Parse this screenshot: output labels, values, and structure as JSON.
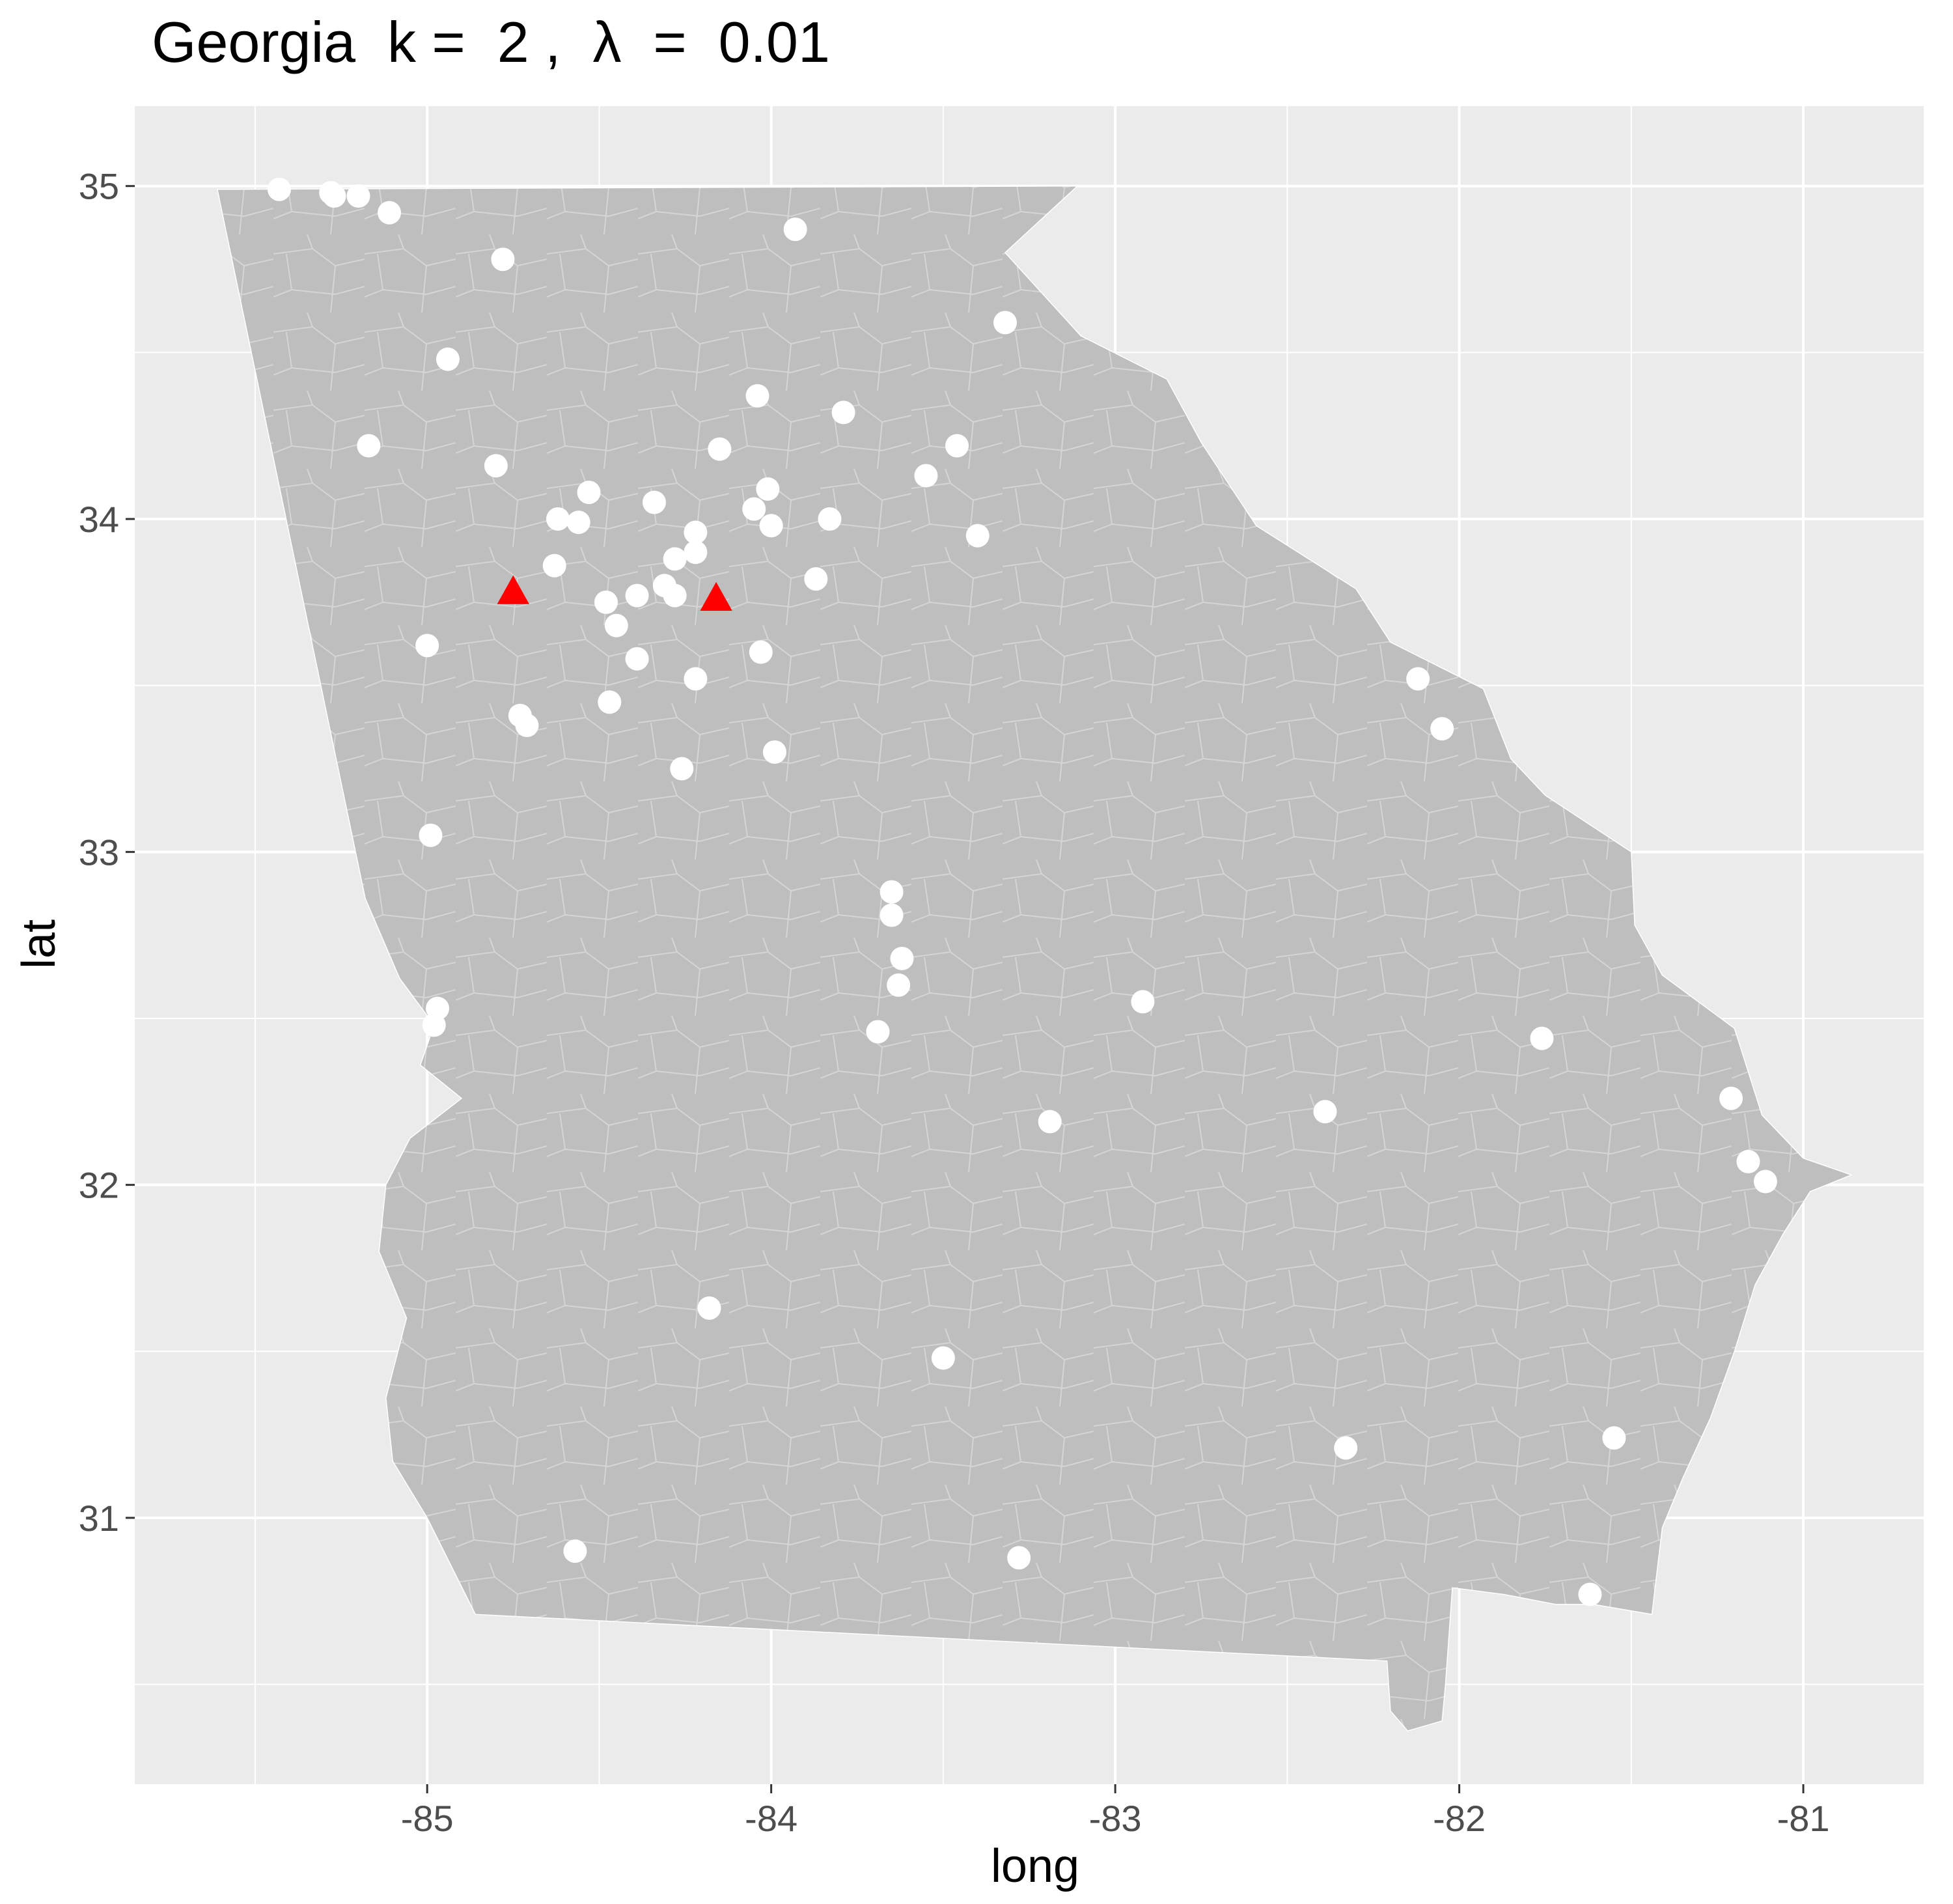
{
  "title": "Georgia  k =  2 ,  λ  =  0.01",
  "xlabel": "long",
  "ylabel": "lat",
  "colors": {
    "panel": "#ebebeb",
    "grid": "#ffffff",
    "state_fill": "#bebebe",
    "tract_lines": "#ffffff",
    "points": "#ffffff",
    "centers": "#ff0000"
  },
  "chart_data": {
    "type": "scatter",
    "xlim": [
      -85.85,
      -80.65
    ],
    "ylim": [
      30.2,
      35.24
    ],
    "x_ticks": [
      {
        "value": -85,
        "label": "-85"
      },
      {
        "value": -84,
        "label": "-84"
      },
      {
        "value": -83,
        "label": "-83"
      },
      {
        "value": -82,
        "label": "-82"
      },
      {
        "value": -81,
        "label": "-81"
      }
    ],
    "y_ticks": [
      {
        "value": 31,
        "label": "31"
      },
      {
        "value": 32,
        "label": "32"
      },
      {
        "value": 33,
        "label": "33"
      },
      {
        "value": 34,
        "label": "34"
      },
      {
        "value": 35,
        "label": "35"
      }
    ],
    "x_minor": [
      -85.5,
      -84.5,
      -83.5,
      -82.5,
      -81.5
    ],
    "y_minor": [
      30.5,
      31.5,
      32.5,
      33.5,
      34.5
    ],
    "grid": true,
    "state_outline": [
      [
        -85.61,
        34.99
      ],
      [
        -83.11,
        35.0
      ],
      [
        -83.32,
        34.8
      ],
      [
        -83.1,
        34.55
      ],
      [
        -82.85,
        34.42
      ],
      [
        -82.75,
        34.23
      ],
      [
        -82.59,
        33.98
      ],
      [
        -82.3,
        33.79
      ],
      [
        -82.2,
        33.63
      ],
      [
        -81.93,
        33.49
      ],
      [
        -81.85,
        33.28
      ],
      [
        -81.75,
        33.17
      ],
      [
        -81.5,
        33.0
      ],
      [
        -81.49,
        32.78
      ],
      [
        -81.41,
        32.63
      ],
      [
        -81.2,
        32.47
      ],
      [
        -81.12,
        32.21
      ],
      [
        -81.0,
        32.08
      ],
      [
        -80.86,
        32.03
      ],
      [
        -80.98,
        31.98
      ],
      [
        -81.06,
        31.85
      ],
      [
        -81.14,
        31.7
      ],
      [
        -81.2,
        31.5
      ],
      [
        -81.27,
        31.3
      ],
      [
        -81.35,
        31.12
      ],
      [
        -81.41,
        30.97
      ],
      [
        -81.44,
        30.71
      ],
      [
        -81.61,
        30.74
      ],
      [
        -81.72,
        30.74
      ],
      [
        -81.87,
        30.77
      ],
      [
        -82.02,
        30.79
      ],
      [
        -82.04,
        30.5
      ],
      [
        -82.05,
        30.39
      ],
      [
        -82.15,
        30.36
      ],
      [
        -82.2,
        30.42
      ],
      [
        -82.21,
        30.57
      ],
      [
        -84.86,
        30.71
      ],
      [
        -85.0,
        31.0
      ],
      [
        -85.1,
        31.17
      ],
      [
        -85.12,
        31.36
      ],
      [
        -85.06,
        31.6
      ],
      [
        -85.14,
        31.8
      ],
      [
        -85.12,
        32.0
      ],
      [
        -85.05,
        32.14
      ],
      [
        -84.9,
        32.26
      ],
      [
        -85.02,
        32.36
      ],
      [
        -84.98,
        32.48
      ],
      [
        -85.08,
        32.62
      ],
      [
        -85.18,
        32.86
      ],
      [
        -85.61,
        34.99
      ]
    ],
    "series": [
      {
        "kind": "observations",
        "marker": "circle",
        "points": [
          [
            -85.43,
            34.99
          ],
          [
            -85.28,
            34.98
          ],
          [
            -85.27,
            34.97
          ],
          [
            -85.2,
            34.97
          ],
          [
            -85.11,
            34.92
          ],
          [
            -84.78,
            34.78
          ],
          [
            -83.93,
            34.87
          ],
          [
            -83.32,
            34.59
          ],
          [
            -84.94,
            34.48
          ],
          [
            -84.04,
            34.37
          ],
          [
            -83.79,
            34.32
          ],
          [
            -85.17,
            34.22
          ],
          [
            -84.15,
            34.21
          ],
          [
            -83.46,
            34.22
          ],
          [
            -84.8,
            34.16
          ],
          [
            -83.55,
            34.13
          ],
          [
            -84.53,
            34.08
          ],
          [
            -84.01,
            34.09
          ],
          [
            -84.34,
            34.05
          ],
          [
            -84.05,
            34.03
          ],
          [
            -84.62,
            34.0
          ],
          [
            -84.56,
            33.99
          ],
          [
            -84.0,
            33.98
          ],
          [
            -83.83,
            34.0
          ],
          [
            -84.22,
            33.96
          ],
          [
            -83.4,
            33.95
          ],
          [
            -84.22,
            33.9
          ],
          [
            -84.28,
            33.88
          ],
          [
            -84.63,
            33.86
          ],
          [
            -83.87,
            33.82
          ],
          [
            -84.31,
            33.8
          ],
          [
            -84.39,
            33.77
          ],
          [
            -84.28,
            33.77
          ],
          [
            -84.48,
            33.75
          ],
          [
            -84.45,
            33.68
          ],
          [
            -84.39,
            33.58
          ],
          [
            -84.03,
            33.6
          ],
          [
            -85.0,
            33.62
          ],
          [
            -84.22,
            33.52
          ],
          [
            -84.47,
            33.45
          ],
          [
            -84.73,
            33.41
          ],
          [
            -84.71,
            33.38
          ],
          [
            -82.12,
            33.52
          ],
          [
            -82.05,
            33.37
          ],
          [
            -83.99,
            33.3
          ],
          [
            -84.26,
            33.25
          ],
          [
            -84.99,
            33.05
          ],
          [
            -83.65,
            32.88
          ],
          [
            -83.65,
            32.81
          ],
          [
            -83.62,
            32.68
          ],
          [
            -83.63,
            32.6
          ],
          [
            -83.69,
            32.46
          ],
          [
            -84.97,
            32.53
          ],
          [
            -84.98,
            32.48
          ],
          [
            -82.92,
            32.55
          ],
          [
            -81.76,
            32.44
          ],
          [
            -81.21,
            32.26
          ],
          [
            -82.39,
            32.22
          ],
          [
            -83.19,
            32.19
          ],
          [
            -81.16,
            32.07
          ],
          [
            -81.11,
            32.01
          ],
          [
            -84.18,
            31.63
          ],
          [
            -83.5,
            31.48
          ],
          [
            -82.33,
            31.21
          ],
          [
            -81.55,
            31.24
          ],
          [
            -84.57,
            30.9
          ],
          [
            -83.28,
            30.88
          ],
          [
            -81.62,
            30.77
          ]
        ]
      },
      {
        "kind": "centers",
        "marker": "triangle",
        "points": [
          [
            -84.75,
            33.78
          ],
          [
            -84.16,
            33.76
          ]
        ]
      }
    ]
  }
}
